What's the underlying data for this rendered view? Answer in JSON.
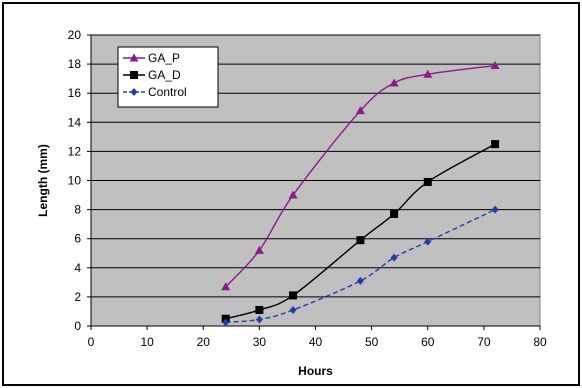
{
  "chart_data": {
    "type": "line",
    "title": "",
    "xlabel": "Hours",
    "ylabel": "Length (mm)",
    "xlim": [
      0,
      80
    ],
    "ylim": [
      0,
      20
    ],
    "xticks": [
      0,
      10,
      20,
      30,
      40,
      50,
      60,
      70,
      80
    ],
    "yticks": [
      0,
      2,
      4,
      6,
      8,
      10,
      12,
      14,
      16,
      18,
      20
    ],
    "grid": "horizontal",
    "plot_background": "#c0c0c0",
    "legend_placement": "top-left",
    "series": [
      {
        "name": "GA_P",
        "color": "#8b1a8b",
        "marker": "triangle",
        "line_style": "solid",
        "x": [
          24,
          30,
          36,
          48,
          54,
          60,
          72
        ],
        "y": [
          2.7,
          5.2,
          9.0,
          14.8,
          16.7,
          17.3,
          17.9
        ]
      },
      {
        "name": "GA_D",
        "color": "#000000",
        "marker": "square",
        "line_style": "solid",
        "x": [
          24,
          30,
          36,
          48,
          54,
          60,
          72
        ],
        "y": [
          0.5,
          1.1,
          2.1,
          5.9,
          7.7,
          9.9,
          12.5
        ]
      },
      {
        "name": "Control",
        "color": "#1f3fa6",
        "marker": "diamond",
        "line_style": "dashed",
        "x": [
          24,
          30,
          36,
          48,
          54,
          60,
          72
        ],
        "y": [
          0.25,
          0.45,
          1.1,
          3.1,
          4.7,
          5.8,
          8.0
        ]
      }
    ]
  }
}
